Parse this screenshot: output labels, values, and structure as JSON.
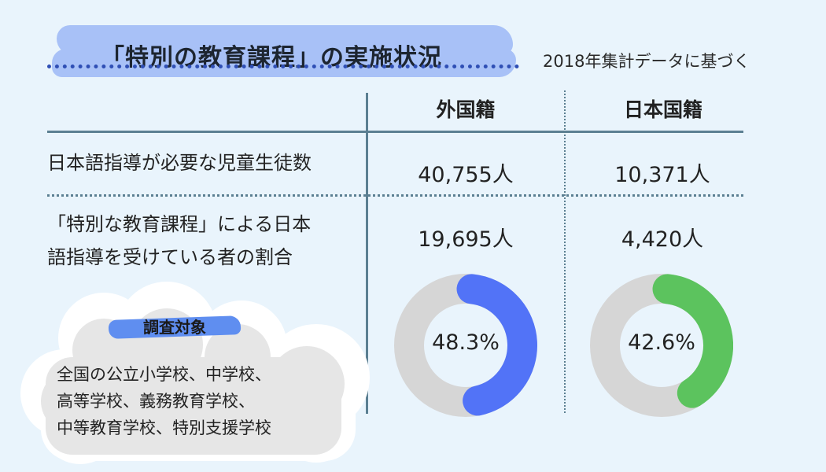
{
  "header": {
    "title": "「特別の教育課程」の実施状況",
    "subtitle": "2018年集計データに基づく"
  },
  "columns": [
    "外国籍",
    "日本国籍"
  ],
  "rows": [
    {
      "label_lines": [
        "日本語指導が必要な児童生徒数"
      ],
      "values": [
        "40,755人",
        "10,371人"
      ]
    },
    {
      "label_lines": [
        "「特別な教育課程」による日本",
        "語指導を受けている者の割合"
      ],
      "values": [
        "19,695人",
        "4,420人"
      ]
    }
  ],
  "survey": {
    "title": "調査対象",
    "lines": [
      "全国の公立小学校、中学校、",
      "高等学校、義務教育学校、",
      "中等教育学校、特別支援学校"
    ]
  },
  "colors": {
    "foreign": "#5273f7",
    "japanese": "#5cc35e",
    "track": "#d6d6d6"
  },
  "chart_data": [
    {
      "type": "pie",
      "categories": [
        "外国籍"
      ],
      "values": [
        48.3
      ],
      "labels": [
        "48.3%"
      ],
      "color": "#5273f7"
    },
    {
      "type": "pie",
      "categories": [
        "日本国籍"
      ],
      "values": [
        42.6
      ],
      "labels": [
        "42.6%"
      ],
      "color": "#5cc35e"
    }
  ]
}
